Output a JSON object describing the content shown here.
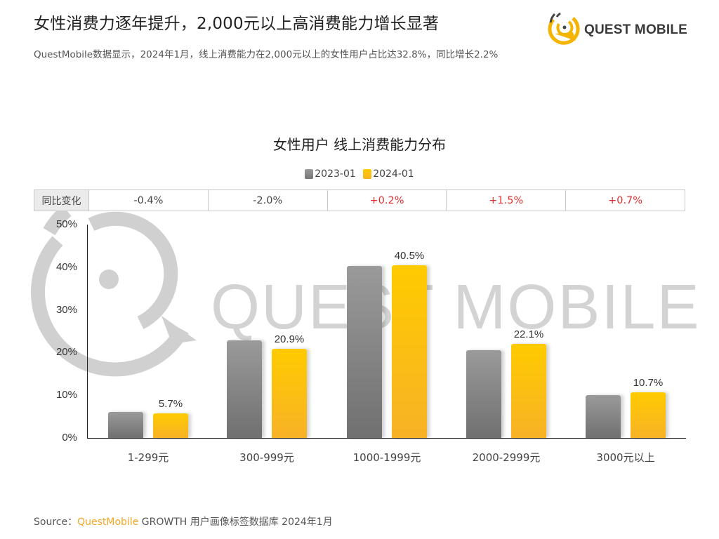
{
  "header": {
    "title": "女性消费力逐年提升，2,000元以上高消费能力增长显著",
    "subtitle": "QuestMobile数据显示，2024年1月，线上消费能力在2,000元以上的女性用户占比达32.8%，同比增长2.2%",
    "logo_text": "QUEST MOBILE"
  },
  "watermark": {
    "text": "QUEST MOBILE"
  },
  "colors": {
    "series_2023": "#808080",
    "series_2024": "#FFC000",
    "positive_change": "#e03030",
    "negative_change": "#444444",
    "brand": "#f5a623"
  },
  "yoy_table": {
    "header": "同比变化",
    "cells": [
      {
        "value": "-0.4%",
        "positive": false
      },
      {
        "value": "-2.0%",
        "positive": false
      },
      {
        "value": "+0.2%",
        "positive": true
      },
      {
        "value": "+1.5%",
        "positive": true
      },
      {
        "value": "+0.7%",
        "positive": true
      }
    ]
  },
  "chart_data": {
    "type": "bar",
    "title": "女性用户 线上消费能力分布",
    "xlabel": "",
    "ylabel": "",
    "ylim": [
      0,
      50
    ],
    "yticks": [
      "0%",
      "10%",
      "20%",
      "30%",
      "40%",
      "50%"
    ],
    "categories": [
      "1-299元",
      "300-999元",
      "1000-1999元",
      "2000-2999元",
      "3000元以上"
    ],
    "series": [
      {
        "name": "2023-01",
        "values": [
          6.1,
          22.9,
          40.3,
          20.6,
          10.0
        ]
      },
      {
        "name": "2024-01",
        "values": [
          5.7,
          20.9,
          40.5,
          22.1,
          10.7
        ]
      }
    ],
    "data_labels": [
      "5.7%",
      "20.9%",
      "40.5%",
      "22.1%",
      "10.7%"
    ],
    "legend": [
      "2023-01",
      "2024-01"
    ],
    "legend_position": "top",
    "grid": false
  },
  "footer": {
    "source_label": "Source：",
    "source_brand": "QuestMobile",
    "source_rest": " GROWTH 用户画像标签数据库 2024年1月"
  }
}
